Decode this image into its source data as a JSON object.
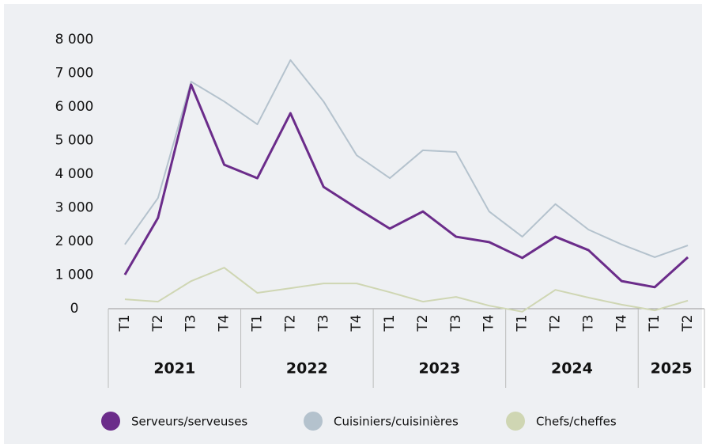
{
  "chart_data": {
    "type": "line",
    "categories": [
      "T1",
      "T2",
      "T3",
      "T4",
      "T1",
      "T2",
      "T3",
      "T4",
      "T1",
      "T2",
      "T3",
      "T4",
      "T1",
      "T2",
      "T3",
      "T4",
      "T1",
      "T2"
    ],
    "years": [
      "2021",
      "2022",
      "2023",
      "2024",
      "2025"
    ],
    "series": [
      {
        "name": "Serveurs/serveuses",
        "color": "#6b2c8a",
        "values": [
          1010,
          2700,
          6660,
          4280,
          3880,
          5810,
          3620,
          2990,
          2380,
          2890,
          2140,
          1980,
          1510,
          2140,
          1740,
          820,
          640,
          1530
        ]
      },
      {
        "name": "Cuisiniers/cuisinières",
        "color": "#b4c2cd",
        "values": [
          1910,
          3290,
          6750,
          6160,
          5480,
          7390,
          6160,
          4560,
          3880,
          4710,
          4660,
          2890,
          2140,
          3110,
          2350,
          1910,
          1530,
          1880
        ]
      },
      {
        "name": "Chefs/cheffes",
        "color": "#cfd6b3",
        "values": [
          280,
          210,
          820,
          1220,
          470,
          610,
          750,
          750,
          490,
          210,
          350,
          90,
          -90,
          560,
          330,
          120,
          -50,
          240
        ]
      }
    ],
    "ylim": [
      0,
      8000
    ],
    "yticks": [
      0,
      {
        "value": 1000,
        "label": "1 000"
      },
      {
        "value": 2000,
        "label": "2 000"
      },
      {
        "value": 3000,
        "label": "3 000"
      },
      {
        "value": 4000,
        "label": "4 000"
      },
      {
        "value": 5000,
        "label": "5 000"
      },
      {
        "value": 6000,
        "label": "6 000"
      },
      {
        "value": 7000,
        "label": "7 000"
      },
      {
        "value": 8000,
        "label": "8 000"
      }
    ]
  }
}
